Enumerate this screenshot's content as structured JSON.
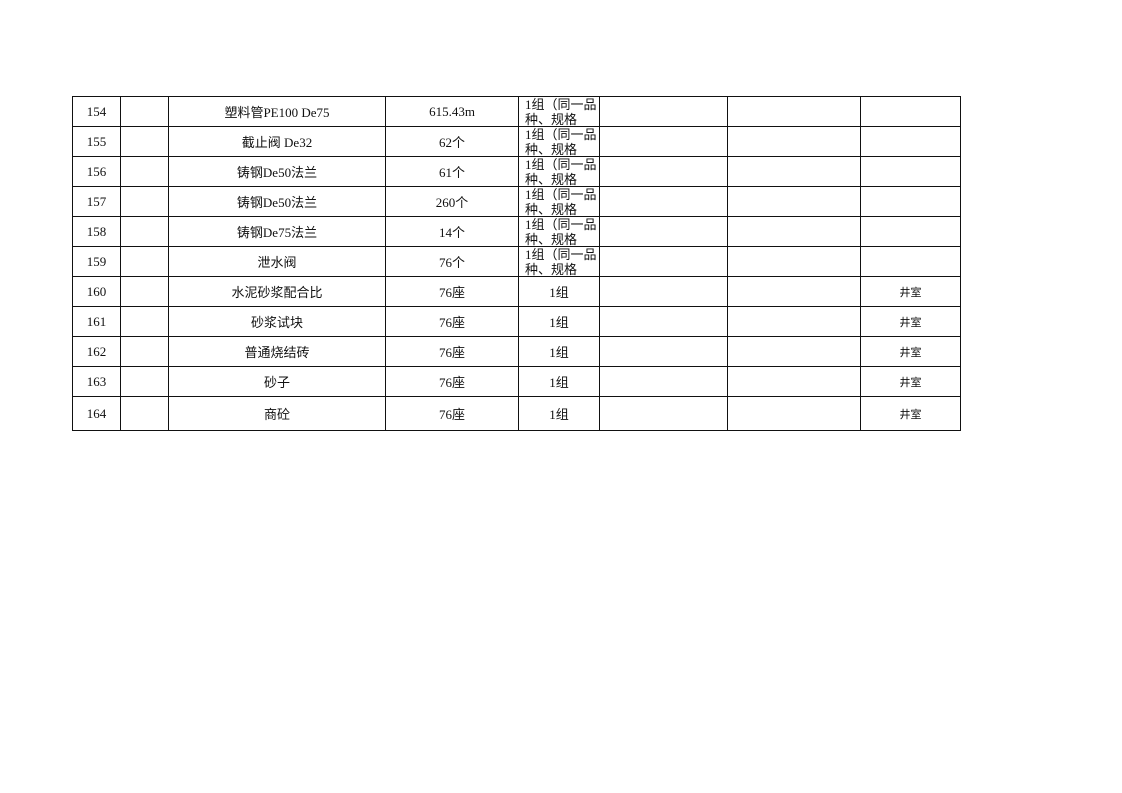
{
  "rows": [
    {
      "no": "154",
      "code": "",
      "name": "塑料管PE100 De75",
      "qty": "615.43m",
      "batch": "1组（同一品种、规格",
      "c6": "",
      "c7": "",
      "note": ""
    },
    {
      "no": "155",
      "code": "",
      "name": "截止阀 De32",
      "qty": "62个",
      "batch": "1组（同一品种、规格",
      "c6": "",
      "c7": "",
      "note": ""
    },
    {
      "no": "156",
      "code": "",
      "name": "铸钢De50法兰",
      "qty": "61个",
      "batch": "1组（同一品种、规格",
      "c6": "",
      "c7": "",
      "note": ""
    },
    {
      "no": "157",
      "code": "",
      "name": "铸钢De50法兰",
      "qty": "260个",
      "batch": "1组（同一品种、规格",
      "c6": "",
      "c7": "",
      "note": ""
    },
    {
      "no": "158",
      "code": "",
      "name": "铸钢De75法兰",
      "qty": "14个",
      "batch": "1组（同一品种、规格",
      "c6": "",
      "c7": "",
      "note": ""
    },
    {
      "no": "159",
      "code": "",
      "name": "泄水阀",
      "qty": "76个",
      "batch": "1组（同一品种、规格",
      "c6": "",
      "c7": "",
      "note": ""
    },
    {
      "no": "160",
      "code": "",
      "name": "水泥砂浆配合比",
      "qty": "76座",
      "batch": "1组",
      "c6": "",
      "c7": "",
      "note": "井室"
    },
    {
      "no": "161",
      "code": "",
      "name": "砂浆试块",
      "qty": "76座",
      "batch": "1组",
      "c6": "",
      "c7": "",
      "note": "井室"
    },
    {
      "no": "162",
      "code": "",
      "name": "普通烧结砖",
      "qty": "76座",
      "batch": "1组",
      "c6": "",
      "c7": "",
      "note": "井室"
    },
    {
      "no": "163",
      "code": "",
      "name": "砂子",
      "qty": "76座",
      "batch": "1组",
      "c6": "",
      "c7": "",
      "note": "井室"
    },
    {
      "no": "164",
      "code": "",
      "name": "商砼",
      "qty": "76座",
      "batch": "1组",
      "c6": "",
      "c7": "",
      "note": "井室"
    }
  ]
}
